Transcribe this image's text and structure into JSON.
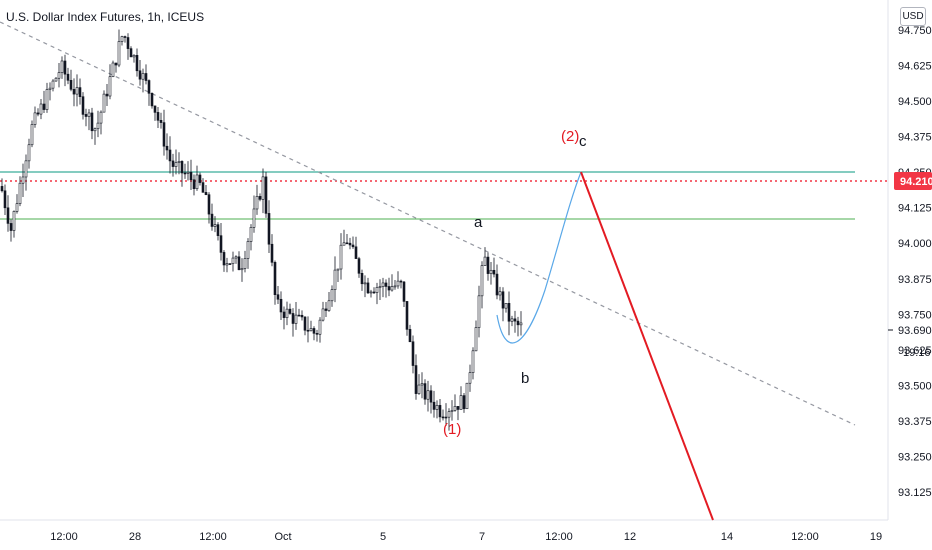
{
  "header": {
    "symbol_title": "U.S. Dollar Index Futures, 1h, ICEUS",
    "currency_button": "USD"
  },
  "price_axis": {
    "ticks": [
      "94.750",
      "94.625",
      "94.500",
      "94.375",
      "94.250",
      "94.125",
      "94.000",
      "93.875",
      "93.750",
      "93.625",
      "93.500",
      "93.375",
      "93.250",
      "93.125"
    ],
    "ticks_values": [
      94.75,
      94.625,
      94.5,
      94.375,
      94.25,
      94.125,
      94.0,
      93.875,
      93.75,
      93.625,
      93.5,
      93.375,
      93.25,
      93.125
    ],
    "alert_label": "94.210",
    "alert_color": "#f23645",
    "last_price_label": "93.690",
    "countdown_label": "19:16"
  },
  "time_axis": {
    "labels": [
      "12:00",
      "28",
      "12:00",
      "Oct",
      "5",
      "7",
      "12:00",
      "12",
      "14",
      "12:00",
      "19"
    ]
  },
  "annotations": {
    "wave_1": "(1)",
    "wave_2": "(2)",
    "wave_c": "c",
    "wave_a": "a",
    "wave_b": "b"
  },
  "colors": {
    "teal_line": "#089981",
    "green_line": "#4caf50",
    "alert_red": "#f23645",
    "projection_red": "#e31b23",
    "projection_blue": "#5aa8e8",
    "trendline_gray": "#9598a1",
    "candles": "#131722"
  },
  "chart_data": {
    "type": "candlestick",
    "title": "U.S. Dollar Index Futures, 1h, ICEUS",
    "y_range": [
      93.06,
      94.79
    ],
    "horizontal_levels": [
      {
        "value": 94.25,
        "color": "#089981",
        "style": "solid"
      },
      {
        "value": 94.21,
        "color": "#f23645",
        "style": "dotted"
      },
      {
        "value": 94.08,
        "color": "#4caf50",
        "style": "solid"
      }
    ],
    "price_path": [
      {
        "x": "Sep 25",
        "y": 94.2
      },
      {
        "x": "Sep 26",
        "y": 94.65
      },
      {
        "x": "Sep 27 00:00",
        "y": 94.74
      },
      {
        "x": "Sep 28 00:00",
        "y": 94.55
      },
      {
        "x": "Sep 28 12:00",
        "y": 94.2
      },
      {
        "x": "Sep 29",
        "y": 93.93
      },
      {
        "x": "Sep 30",
        "y": 94.22
      },
      {
        "x": "Oct 1",
        "y": 93.72
      },
      {
        "x": "Oct 2",
        "y": 94.02
      },
      {
        "x": "Oct 5",
        "y": 93.85
      },
      {
        "x": "Oct 6",
        "y": 93.45
      },
      {
        "x": "Oct 6 12:00",
        "y": 93.41
      },
      {
        "x": "Oct 7",
        "y": 93.95
      },
      {
        "x": "Oct 7 12:00",
        "y": 93.7
      }
    ],
    "projection": [
      {
        "label": "b",
        "y": 93.7
      },
      {
        "label": "(2) c",
        "y": 94.25
      },
      {
        "label": "end",
        "y": 93.06
      }
    ]
  }
}
